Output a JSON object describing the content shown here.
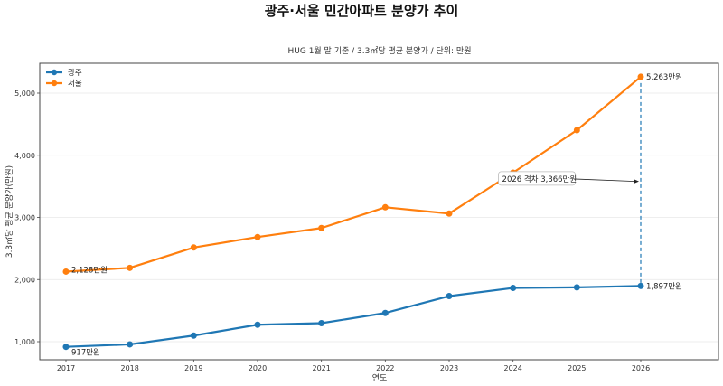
{
  "chart_data": {
    "type": "line",
    "title": "광주·서울 민간아파트 분양가 추이",
    "subtitle": "HUG 1월 말 기준 / 3.3㎡당 평균 분양가 / 단위: 만원",
    "xlabel": "연도",
    "ylabel": "3.3㎡당 평균 분양가(만원)",
    "x": [
      2017,
      2018,
      2019,
      2020,
      2021,
      2022,
      2023,
      2024,
      2025,
      2026
    ],
    "x_tick_labels": [
      "2017",
      "2018",
      "2019",
      "2020",
      "2021",
      "2022",
      "2023",
      "2024",
      "2025",
      "2026"
    ],
    "xlim": [
      2016.6,
      2026.9
    ],
    "ylim": [
      700,
      5480
    ],
    "y_ticks": [
      1000,
      2000,
      3000,
      4000,
      5000
    ],
    "y_tick_labels": [
      "1,000",
      "2,000",
      "3,000",
      "4,000",
      "5,000"
    ],
    "grid": "horizontal",
    "legend_position": "top-left",
    "series": [
      {
        "name": "광주",
        "color": "#1f77b4",
        "values": [
          917,
          957,
          1098,
          1273,
          1298,
          1462,
          1734,
          1865,
          1875,
          1897
        ]
      },
      {
        "name": "서울",
        "color": "#ff7f0e",
        "values": [
          2128,
          2188,
          2516,
          2684,
          2829,
          3163,
          3062,
          3720,
          4404,
          5263
        ]
      }
    ],
    "data_labels": [
      {
        "series": "광주",
        "x": 2017,
        "text": "917만원"
      },
      {
        "series": "서울",
        "x": 2017,
        "text": "2,128만원"
      },
      {
        "series": "광주",
        "x": 2026,
        "text": "1,897만원"
      },
      {
        "series": "서울",
        "x": 2026,
        "text": "5,263만원"
      }
    ],
    "annotation": {
      "text": "2026 격차 3,366만원",
      "x": 2026,
      "gap_from": 1897,
      "gap_to": 5263,
      "arrow_target_value": 3580,
      "text_anchor_x": 2023.8,
      "text_anchor_value": 3620
    }
  }
}
